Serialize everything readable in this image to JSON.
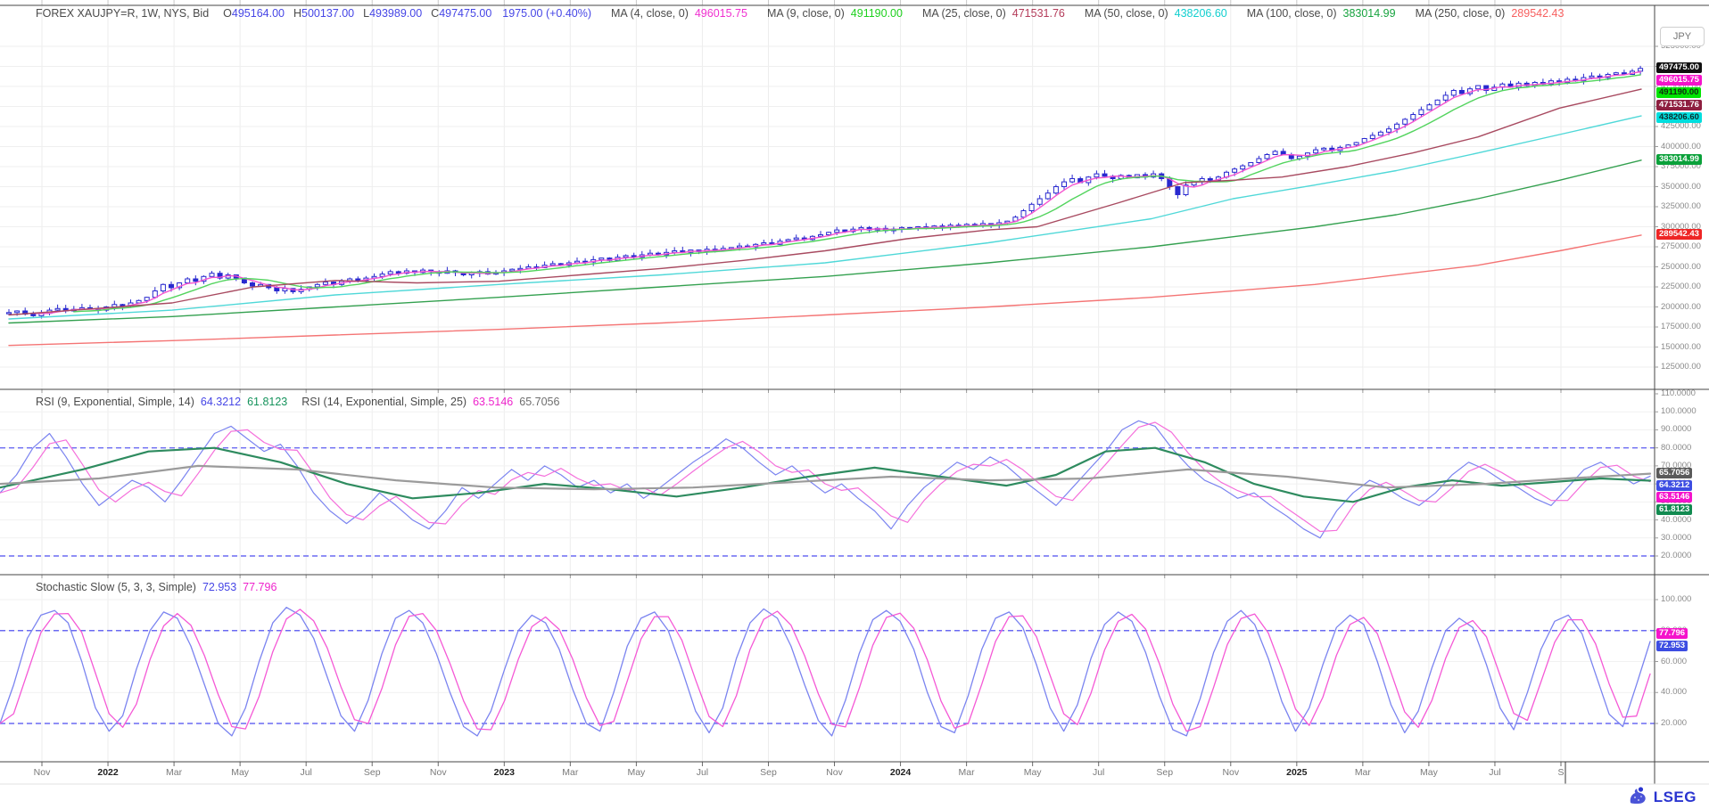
{
  "header": {
    "symbol": "FOREX XAUJPY=R, 1W, NYS, Bid",
    "fields": [
      {
        "label": "O",
        "value": "495164.00"
      },
      {
        "label": "H",
        "value": "500137.00"
      },
      {
        "label": "L",
        "value": "493989.00"
      },
      {
        "label": "C",
        "value": "497475.00"
      }
    ],
    "change": "1975.00 (+0.40%)",
    "ma_legend": [
      {
        "label": "MA (4, close, 0)",
        "value": "496015.75",
        "color": "#f02fd0"
      },
      {
        "label": "MA (9, close, 0)",
        "value": "491190.00",
        "color": "#1ed11e"
      },
      {
        "label": "MA (25, close, 0)",
        "value": "471531.76",
        "color": "#b43c5a"
      },
      {
        "label": "MA (50, close, 0)",
        "value": "438206.60",
        "color": "#12cfcf"
      },
      {
        "label": "MA (100, close, 0)",
        "value": "383014.99",
        "color": "#17a33f"
      },
      {
        "label": "MA (250, close, 0)",
        "value": "289542.43",
        "color": "#f75f5f"
      }
    ],
    "currency_button": "JPY"
  },
  "rsi_header": {
    "label1": "RSI (9, Exponential, Simple, 14)",
    "value1": "64.3212",
    "value2": "61.8123",
    "label2": "RSI (14, Exponential, Simple, 25)",
    "value3": "63.5146",
    "value4": "65.7056"
  },
  "stoch_header": {
    "label": "Stochastic Slow (5, 3, 3, Simple)",
    "value1": "72.953",
    "value2": "77.796"
  },
  "footer": {
    "brand": "LSEG"
  },
  "chart_data": [
    {
      "type": "candlestick",
      "title": "FOREX XAUJPY=R, 1W, NYS, Bid",
      "ylabel": "JPY",
      "ylim": [
        125000,
        545000
      ],
      "y_tick_max": 525000,
      "y_tick_min": 125000,
      "y_tick_step": 25000,
      "x_ticks": [
        "Nov",
        "2022",
        "Mar",
        "May",
        "Jul",
        "Sep",
        "Nov",
        "2023",
        "Mar",
        "May",
        "Jul",
        "Sep",
        "Nov",
        "2024",
        "Mar",
        "May",
        "Jul",
        "Sep",
        "Nov",
        "2025",
        "Mar",
        "May",
        "Jul",
        "S"
      ],
      "candle_color": "#2929cf",
      "weekly_closes": [
        193000,
        195000,
        191000,
        189000,
        192000,
        196000,
        198000,
        195000,
        197000,
        199000,
        198000,
        196000,
        200000,
        203000,
        201000,
        205000,
        208000,
        212000,
        220000,
        228000,
        224000,
        230000,
        235000,
        232000,
        238000,
        242000,
        236000,
        240000,
        236000,
        230000,
        226000,
        228000,
        224000,
        220000,
        223000,
        219000,
        222000,
        225000,
        228000,
        231000,
        228000,
        232000,
        235000,
        233000,
        236000,
        238000,
        241000,
        244000,
        242000,
        245000,
        243000,
        246000,
        244000,
        242000,
        245000,
        243000,
        240000,
        242000,
        244000,
        241000,
        243000,
        245000,
        247000,
        248000,
        250000,
        249000,
        252000,
        254000,
        252000,
        255000,
        257000,
        256000,
        259000,
        261000,
        258000,
        262000,
        264000,
        262000,
        265000,
        267000,
        265000,
        268000,
        270000,
        268000,
        271000,
        269000,
        272000,
        270000,
        273000,
        274000,
        276000,
        275000,
        278000,
        280000,
        278000,
        282000,
        284000,
        286000,
        284000,
        288000,
        290000,
        293000,
        296000,
        294000,
        297000,
        299000,
        296000,
        298000,
        295000,
        297000,
        299000,
        298000,
        300000,
        298000,
        301000,
        299000,
        302000,
        300000,
        303000,
        301000,
        304000,
        302000,
        305000,
        307000,
        312000,
        320000,
        328000,
        335000,
        342000,
        350000,
        356000,
        360000,
        355000,
        362000,
        366000,
        363000,
        360000,
        364000,
        361000,
        365000,
        362000,
        366000,
        360000,
        350000,
        340000,
        352000,
        356000,
        360000,
        358000,
        362000,
        368000,
        372000,
        376000,
        380000,
        385000,
        390000,
        394000,
        390000,
        385000,
        388000,
        392000,
        396000,
        398000,
        395000,
        399000,
        402000,
        405000,
        410000,
        414000,
        418000,
        422000,
        428000,
        434000,
        440000,
        446000,
        452000,
        458000,
        464000,
        470000,
        466000,
        472000,
        476000,
        470000,
        474000,
        478000,
        474000,
        479000,
        476000,
        480000,
        478000,
        482000,
        480000,
        484000,
        482000,
        486000,
        488000,
        486000,
        490000,
        492000,
        490000,
        494000,
        497475
      ],
      "ma_colors": {
        "ma4": "#f554cf",
        "ma9": "#53d45e",
        "ma25": "#a84a60",
        "ma50": "#4fd8d8",
        "ma100": "#33a04f",
        "ma250": "#f47474"
      },
      "ma25_anchors": [
        [
          0,
          190000
        ],
        [
          0.1,
          205000
        ],
        [
          0.15,
          225000
        ],
        [
          0.2,
          233000
        ],
        [
          0.25,
          230000
        ],
        [
          0.3,
          232000
        ],
        [
          0.35,
          240000
        ],
        [
          0.4,
          248000
        ],
        [
          0.45,
          258000
        ],
        [
          0.5,
          270000
        ],
        [
          0.55,
          285000
        ],
        [
          0.6,
          296000
        ],
        [
          0.63,
          300000
        ],
        [
          0.68,
          330000
        ],
        [
          0.72,
          355000
        ],
        [
          0.75,
          358000
        ],
        [
          0.78,
          362000
        ],
        [
          0.82,
          375000
        ],
        [
          0.86,
          392000
        ],
        [
          0.9,
          412000
        ],
        [
          0.95,
          448000
        ],
        [
          1,
          471531
        ]
      ],
      "ma50_anchors": [
        [
          0,
          185000
        ],
        [
          0.1,
          196000
        ],
        [
          0.2,
          215000
        ],
        [
          0.3,
          228000
        ],
        [
          0.4,
          240000
        ],
        [
          0.5,
          255000
        ],
        [
          0.6,
          280000
        ],
        [
          0.7,
          310000
        ],
        [
          0.75,
          335000
        ],
        [
          0.8,
          352000
        ],
        [
          0.85,
          370000
        ],
        [
          0.9,
          392000
        ],
        [
          0.95,
          415000
        ],
        [
          1,
          438206
        ]
      ],
      "ma100_anchors": [
        [
          0,
          180000
        ],
        [
          0.1,
          188000
        ],
        [
          0.2,
          200000
        ],
        [
          0.3,
          212000
        ],
        [
          0.4,
          225000
        ],
        [
          0.5,
          238000
        ],
        [
          0.6,
          255000
        ],
        [
          0.7,
          275000
        ],
        [
          0.8,
          300000
        ],
        [
          0.85,
          315000
        ],
        [
          0.9,
          335000
        ],
        [
          0.95,
          358000
        ],
        [
          1,
          383014
        ]
      ],
      "ma250_anchors": [
        [
          0,
          152000
        ],
        [
          0.1,
          158000
        ],
        [
          0.2,
          165000
        ],
        [
          0.3,
          172000
        ],
        [
          0.4,
          180000
        ],
        [
          0.5,
          190000
        ],
        [
          0.6,
          200000
        ],
        [
          0.7,
          212000
        ],
        [
          0.8,
          228000
        ],
        [
          0.9,
          252000
        ],
        [
          0.95,
          270000
        ],
        [
          1,
          289542
        ]
      ],
      "badges": [
        {
          "text": "497475.00",
          "at": 497475,
          "bg": "#111111",
          "fg": "#ffffff"
        },
        {
          "text": "496015.75",
          "at": 496015.75,
          "bg": "#f513cb",
          "fg": "#ffffff"
        },
        {
          "text": "491190.00",
          "at": 491190,
          "bg": "#00e400",
          "fg": "#102a10"
        },
        {
          "text": "471531.76",
          "at": 471531.76,
          "bg": "#8e1f40",
          "fg": "#ffffff"
        },
        {
          "text": "438206.60",
          "at": 438206.6,
          "bg": "#00dede",
          "fg": "#0e2a2a"
        },
        {
          "text": "383014.99",
          "at": 383014.99,
          "bg": "#0aa13a",
          "fg": "#ffffff"
        },
        {
          "text": "289542.43",
          "at": 289542.43,
          "bg": "#ee2525",
          "fg": "#ffffff"
        }
      ]
    },
    {
      "type": "line",
      "title": "RSI (9, Exponential, Simple, 14) / RSI (14, Exponential, Simple, 25)",
      "ylim": [
        14,
        113
      ],
      "y_ticks": [
        110,
        100,
        90,
        80,
        70,
        60,
        50,
        40,
        30,
        20
      ],
      "dashed_levels": [
        80,
        20
      ],
      "colors": {
        "rsi9": "#7b84f0",
        "rsi14": "#f56fdb",
        "rsi9_ma": "#2e8b5f",
        "rsi14_ma": "#9b9b9b"
      },
      "rsi9_values": [
        55,
        65,
        80,
        88,
        75,
        60,
        48,
        55,
        62,
        58,
        50,
        62,
        75,
        88,
        92,
        85,
        78,
        82,
        70,
        55,
        45,
        38,
        45,
        55,
        48,
        40,
        35,
        45,
        58,
        52,
        60,
        68,
        62,
        70,
        65,
        58,
        62,
        55,
        60,
        52,
        58,
        65,
        72,
        78,
        85,
        80,
        72,
        65,
        70,
        62,
        55,
        60,
        52,
        45,
        35,
        48,
        58,
        65,
        72,
        68,
        75,
        70,
        62,
        55,
        48,
        58,
        68,
        78,
        90,
        95,
        92,
        80,
        70,
        62,
        58,
        52,
        55,
        48,
        42,
        35,
        30,
        45,
        55,
        62,
        58,
        52,
        48,
        55,
        65,
        72,
        68,
        62,
        58,
        52,
        48,
        58,
        68,
        72,
        66,
        60,
        64.3
      ],
      "rsi9_ma_anchors": [
        [
          0,
          58
        ],
        [
          0.05,
          68
        ],
        [
          0.09,
          78
        ],
        [
          0.13,
          80
        ],
        [
          0.17,
          72
        ],
        [
          0.21,
          60
        ],
        [
          0.25,
          52
        ],
        [
          0.29,
          55
        ],
        [
          0.33,
          60
        ],
        [
          0.37,
          57
        ],
        [
          0.41,
          53
        ],
        [
          0.45,
          58
        ],
        [
          0.49,
          64
        ],
        [
          0.53,
          69
        ],
        [
          0.57,
          64
        ],
        [
          0.61,
          59
        ],
        [
          0.64,
          65
        ],
        [
          0.67,
          78
        ],
        [
          0.7,
          80
        ],
        [
          0.73,
          72
        ],
        [
          0.76,
          60
        ],
        [
          0.79,
          53
        ],
        [
          0.82,
          50
        ],
        [
          0.85,
          58
        ],
        [
          0.88,
          62
        ],
        [
          0.91,
          59
        ],
        [
          0.94,
          61
        ],
        [
          0.97,
          63
        ],
        [
          1,
          61.8
        ]
      ],
      "rsi14_ma_anchors": [
        [
          0,
          60
        ],
        [
          0.06,
          63
        ],
        [
          0.12,
          70
        ],
        [
          0.18,
          68
        ],
        [
          0.24,
          62
        ],
        [
          0.3,
          58
        ],
        [
          0.36,
          57
        ],
        [
          0.42,
          58
        ],
        [
          0.48,
          61
        ],
        [
          0.54,
          64
        ],
        [
          0.6,
          62
        ],
        [
          0.66,
          63
        ],
        [
          0.72,
          68
        ],
        [
          0.78,
          64
        ],
        [
          0.84,
          58
        ],
        [
          0.9,
          60
        ],
        [
          0.95,
          63
        ],
        [
          1,
          65.7
        ]
      ],
      "badges": [
        {
          "text": "65.7056",
          "at": 65.7056,
          "bg": "#5a5a5a",
          "fg": "#ffffff"
        },
        {
          "text": "64.3212",
          "at": 64.3212,
          "bg": "#3d4de2",
          "fg": "#ffffff"
        },
        {
          "text": "63.5146",
          "at": 63.5146,
          "bg": "#f513cb",
          "fg": "#ffffff"
        },
        {
          "text": "61.8123",
          "at": 61.8123,
          "bg": "#128a50",
          "fg": "#ffffff"
        }
      ]
    },
    {
      "type": "line",
      "title": "Stochastic Slow (5, 3, 3, Simple)",
      "ylim": [
        2,
        110
      ],
      "y_ticks": [
        100,
        80,
        60,
        40,
        20
      ],
      "dashed_levels": [
        80,
        20
      ],
      "colors": {
        "slow_k": "#7b84f0",
        "slow_d": "#f559d6"
      },
      "slow_k_values": [
        20,
        45,
        75,
        90,
        93,
        85,
        60,
        30,
        15,
        25,
        55,
        80,
        92,
        88,
        70,
        45,
        20,
        12,
        30,
        60,
        85,
        95,
        90,
        75,
        50,
        25,
        15,
        35,
        65,
        88,
        93,
        85,
        65,
        40,
        18,
        12,
        28,
        55,
        80,
        90,
        85,
        68,
        42,
        20,
        15,
        40,
        70,
        88,
        92,
        80,
        55,
        28,
        14,
        30,
        62,
        85,
        94,
        88,
        70,
        45,
        22,
        12,
        35,
        65,
        87,
        93,
        86,
        68,
        40,
        18,
        14,
        38,
        68,
        88,
        92,
        82,
        58,
        30,
        15,
        32,
        62,
        84,
        92,
        86,
        66,
        38,
        16,
        12,
        36,
        66,
        86,
        93,
        84,
        62,
        34,
        15,
        30,
        58,
        82,
        90,
        84,
        60,
        32,
        14,
        28,
        56,
        80,
        88,
        82,
        58,
        30,
        16,
        40,
        68,
        86,
        90,
        78,
        52,
        26,
        18,
        45,
        72.95
      ],
      "badges": [
        {
          "text": "77.796",
          "at": 77.796,
          "bg": "#f513cb",
          "fg": "#ffffff"
        },
        {
          "text": "72.953",
          "at": 72.953,
          "bg": "#3d4de2",
          "fg": "#ffffff"
        }
      ]
    }
  ]
}
